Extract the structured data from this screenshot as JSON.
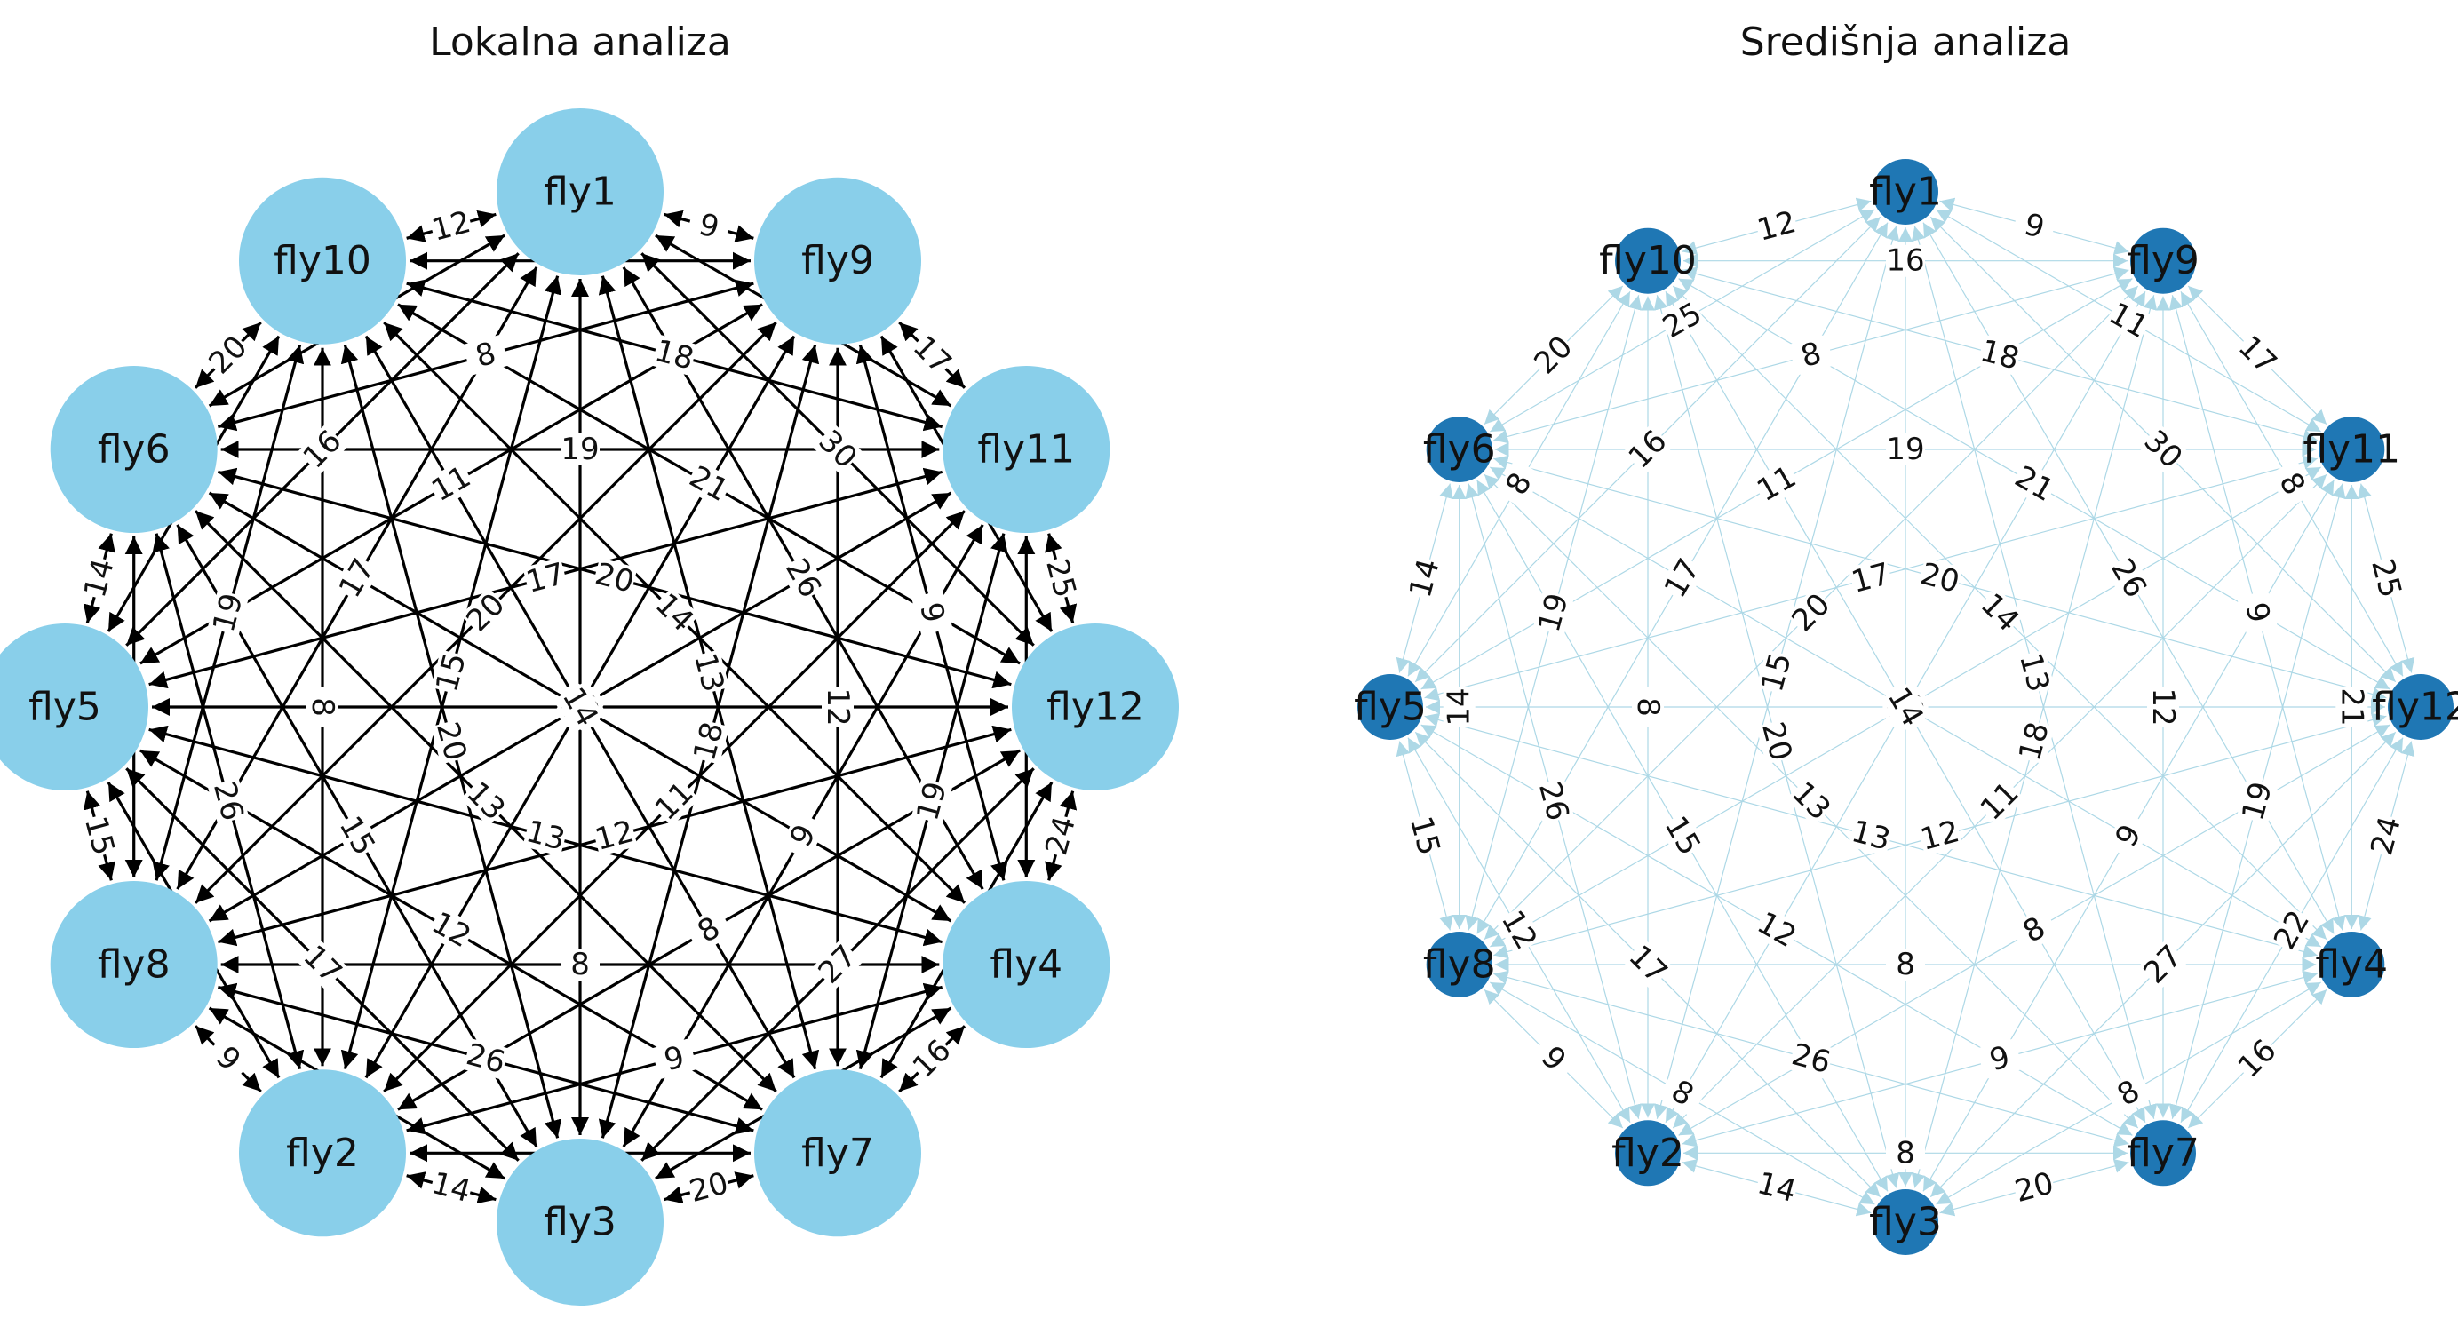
{
  "left_panel": {
    "title": "Lokalna analiza",
    "node_color": "#89CFEA",
    "edge_color": "#000000"
  },
  "right_panel": {
    "title": "Središnja analiza",
    "node_color": "#1F77B4",
    "edge_color": "#ADD8E6"
  },
  "nodes": [
    "fly1",
    "fly9",
    "fly11",
    "fly12",
    "fly4",
    "fly7",
    "fly3",
    "fly2",
    "fly8",
    "fly5",
    "fly6",
    "fly10"
  ],
  "edges": [
    {
      "a": "fly1",
      "b": "fly9",
      "w": "9"
    },
    {
      "a": "fly1",
      "b": "fly11",
      "w": "11"
    },
    {
      "a": "fly1",
      "b": "fly12",
      "w": "30"
    },
    {
      "a": "fly1",
      "b": "fly4",
      "w": "26"
    },
    {
      "a": "fly1",
      "b": "fly7",
      "w": "13"
    },
    {
      "a": "fly1",
      "b": "fly3",
      "w": "15"
    },
    {
      "a": "fly1",
      "b": "fly2",
      "w": "15"
    },
    {
      "a": "fly1",
      "b": "fly8",
      "w": "17"
    },
    {
      "a": "fly1",
      "b": "fly5",
      "w": "16"
    },
    {
      "a": "fly1",
      "b": "fly6",
      "w": "25"
    },
    {
      "a": "fly1",
      "b": "fly10",
      "w": "12"
    },
    {
      "a": "fly9",
      "b": "fly11",
      "w": "17"
    },
    {
      "a": "fly9",
      "b": "fly12",
      "w": "8"
    },
    {
      "a": "fly9",
      "b": "fly4",
      "w": "9"
    },
    {
      "a": "fly9",
      "b": "fly7",
      "w": "12"
    },
    {
      "a": "fly9",
      "b": "fly3",
      "w": "18"
    },
    {
      "a": "fly9",
      "b": "fly2",
      "w": "26"
    },
    {
      "a": "fly9",
      "b": "fly8",
      "w": "20"
    },
    {
      "a": "fly9",
      "b": "fly5",
      "w": "11"
    },
    {
      "a": "fly9",
      "b": "fly6",
      "w": "8"
    },
    {
      "a": "fly9",
      "b": "fly10",
      "w": "16"
    },
    {
      "a": "fly11",
      "b": "fly12",
      "w": "25"
    },
    {
      "a": "fly11",
      "b": "fly4",
      "w": "21"
    },
    {
      "a": "fly11",
      "b": "fly7",
      "w": "19"
    },
    {
      "a": "fly11",
      "b": "fly3",
      "w": "9"
    },
    {
      "a": "fly11",
      "b": "fly2",
      "w": "11"
    },
    {
      "a": "fly11",
      "b": "fly8",
      "w": "15"
    },
    {
      "a": "fly11",
      "b": "fly5",
      "w": "17"
    },
    {
      "a": "fly11",
      "b": "fly6",
      "w": "19"
    },
    {
      "a": "fly11",
      "b": "fly10",
      "w": "18"
    },
    {
      "a": "fly12",
      "b": "fly4",
      "w": "24"
    },
    {
      "a": "fly12",
      "b": "fly7",
      "w": "22"
    },
    {
      "a": "fly12",
      "b": "fly3",
      "w": "27"
    },
    {
      "a": "fly12",
      "b": "fly2",
      "w": "8"
    },
    {
      "a": "fly12",
      "b": "fly8",
      "w": "12"
    },
    {
      "a": "fly12",
      "b": "fly5",
      "w": "19"
    },
    {
      "a": "fly12",
      "b": "fly6",
      "w": "20"
    },
    {
      "a": "fly12",
      "b": "fly10",
      "w": "21"
    },
    {
      "a": "fly4",
      "b": "fly7",
      "w": "16"
    },
    {
      "a": "fly4",
      "b": "fly3",
      "w": "8"
    },
    {
      "a": "fly4",
      "b": "fly2",
      "w": "9"
    },
    {
      "a": "fly4",
      "b": "fly8",
      "w": "8"
    },
    {
      "a": "fly4",
      "b": "fly5",
      "w": "13"
    },
    {
      "a": "fly4",
      "b": "fly6",
      "w": "12"
    },
    {
      "a": "fly4",
      "b": "fly10",
      "w": "14"
    },
    {
      "a": "fly7",
      "b": "fly3",
      "w": "20"
    },
    {
      "a": "fly7",
      "b": "fly2",
      "w": "8"
    },
    {
      "a": "fly7",
      "b": "fly8",
      "w": "26"
    },
    {
      "a": "fly7",
      "b": "fly5",
      "w": "12"
    },
    {
      "a": "fly7",
      "b": "fly6",
      "w": "13"
    },
    {
      "a": "fly7",
      "b": "fly10",
      "w": "14"
    },
    {
      "a": "fly3",
      "b": "fly2",
      "w": "14"
    },
    {
      "a": "fly3",
      "b": "fly8",
      "w": "8"
    },
    {
      "a": "fly3",
      "b": "fly5",
      "w": "17"
    },
    {
      "a": "fly3",
      "b": "fly6",
      "w": "15"
    },
    {
      "a": "fly3",
      "b": "fly10",
      "w": "20"
    },
    {
      "a": "fly2",
      "b": "fly8",
      "w": "9"
    },
    {
      "a": "fly2",
      "b": "fly5",
      "w": "12"
    },
    {
      "a": "fly2",
      "b": "fly6",
      "w": "26"
    },
    {
      "a": "fly2",
      "b": "fly10",
      "w": "8"
    },
    {
      "a": "fly8",
      "b": "fly5",
      "w": "15"
    },
    {
      "a": "fly8",
      "b": "fly6",
      "w": "14"
    },
    {
      "a": "fly8",
      "b": "fly10",
      "w": "19"
    },
    {
      "a": "fly5",
      "b": "fly6",
      "w": "14"
    },
    {
      "a": "fly5",
      "b": "fly10",
      "w": "8"
    },
    {
      "a": "fly6",
      "b": "fly10",
      "w": "20"
    }
  ]
}
